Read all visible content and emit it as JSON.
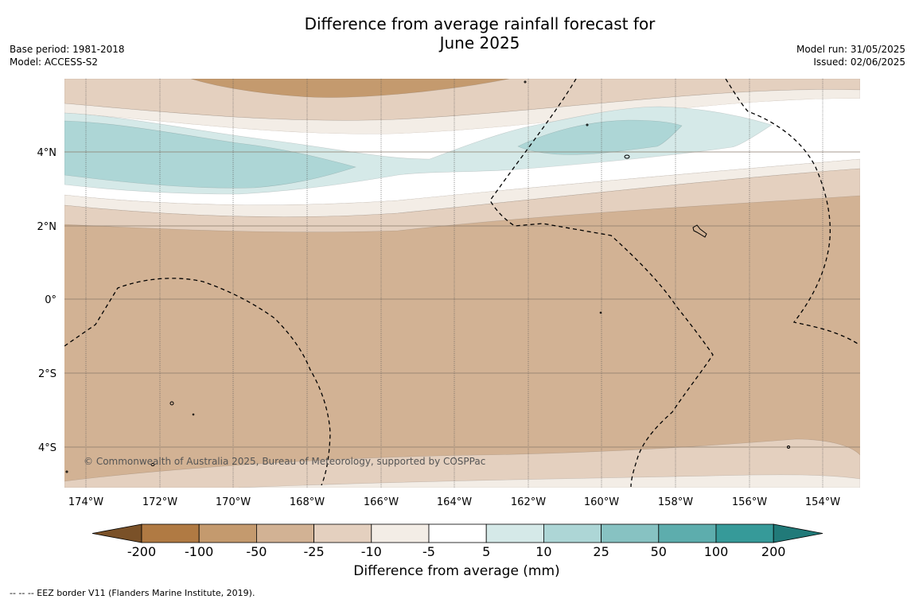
{
  "header": {
    "title_line1": "Difference from average rainfall forecast for",
    "title_line2": "June 2025",
    "base_period": "Base period: 1981-2018",
    "model": "Model: ACCESS-S2",
    "model_run": "Model run: 31/05/2025",
    "issued": "Issued: 02/06/2025"
  },
  "map": {
    "lon_ticks": [
      "174°W",
      "172°W",
      "170°W",
      "168°W",
      "166°W",
      "164°W",
      "162°W",
      "160°W",
      "158°W",
      "156°W",
      "154°W"
    ],
    "lat_ticks": [
      "4°N",
      "2°N",
      "0°",
      "2°S",
      "4°S"
    ],
    "copyright": "© Commonwealth of Australia 2025, Bureau of Meteorology, supported by COSPPac",
    "colors": {
      "dry_200": "#7a5128",
      "dry_100": "#b07a43",
      "dry_50": "#c49a6e",
      "dry_25": "#d2b294",
      "dry_10": "#e4d0bf",
      "dry_5": "#f3ede6",
      "neutral": "#ffffff",
      "wet_5": "#d5e9e8",
      "wet_10": "#add6d6",
      "wet_25": "#87c2c2",
      "wet_50": "#5dadad",
      "wet_100": "#369a99",
      "wet_200": "#217a79"
    }
  },
  "colorbar": {
    "labels": [
      "-200",
      "-100",
      "-50",
      "-25",
      "-10",
      "-5",
      "5",
      "10",
      "25",
      "50",
      "100",
      "200"
    ],
    "colors": [
      "#b07a43",
      "#c49a6e",
      "#d2b294",
      "#e4d0bf",
      "#f3ede6",
      "#ffffff",
      "#d5e9e8",
      "#add6d6",
      "#87c2c2",
      "#5dadad",
      "#369a99"
    ],
    "under_color": "#7a5128",
    "over_color": "#217a79",
    "title": "Difference from average (mm)"
  },
  "footnote": "--  --  -- EEZ border V11 (Flanders Marine Institute, 2019)."
}
